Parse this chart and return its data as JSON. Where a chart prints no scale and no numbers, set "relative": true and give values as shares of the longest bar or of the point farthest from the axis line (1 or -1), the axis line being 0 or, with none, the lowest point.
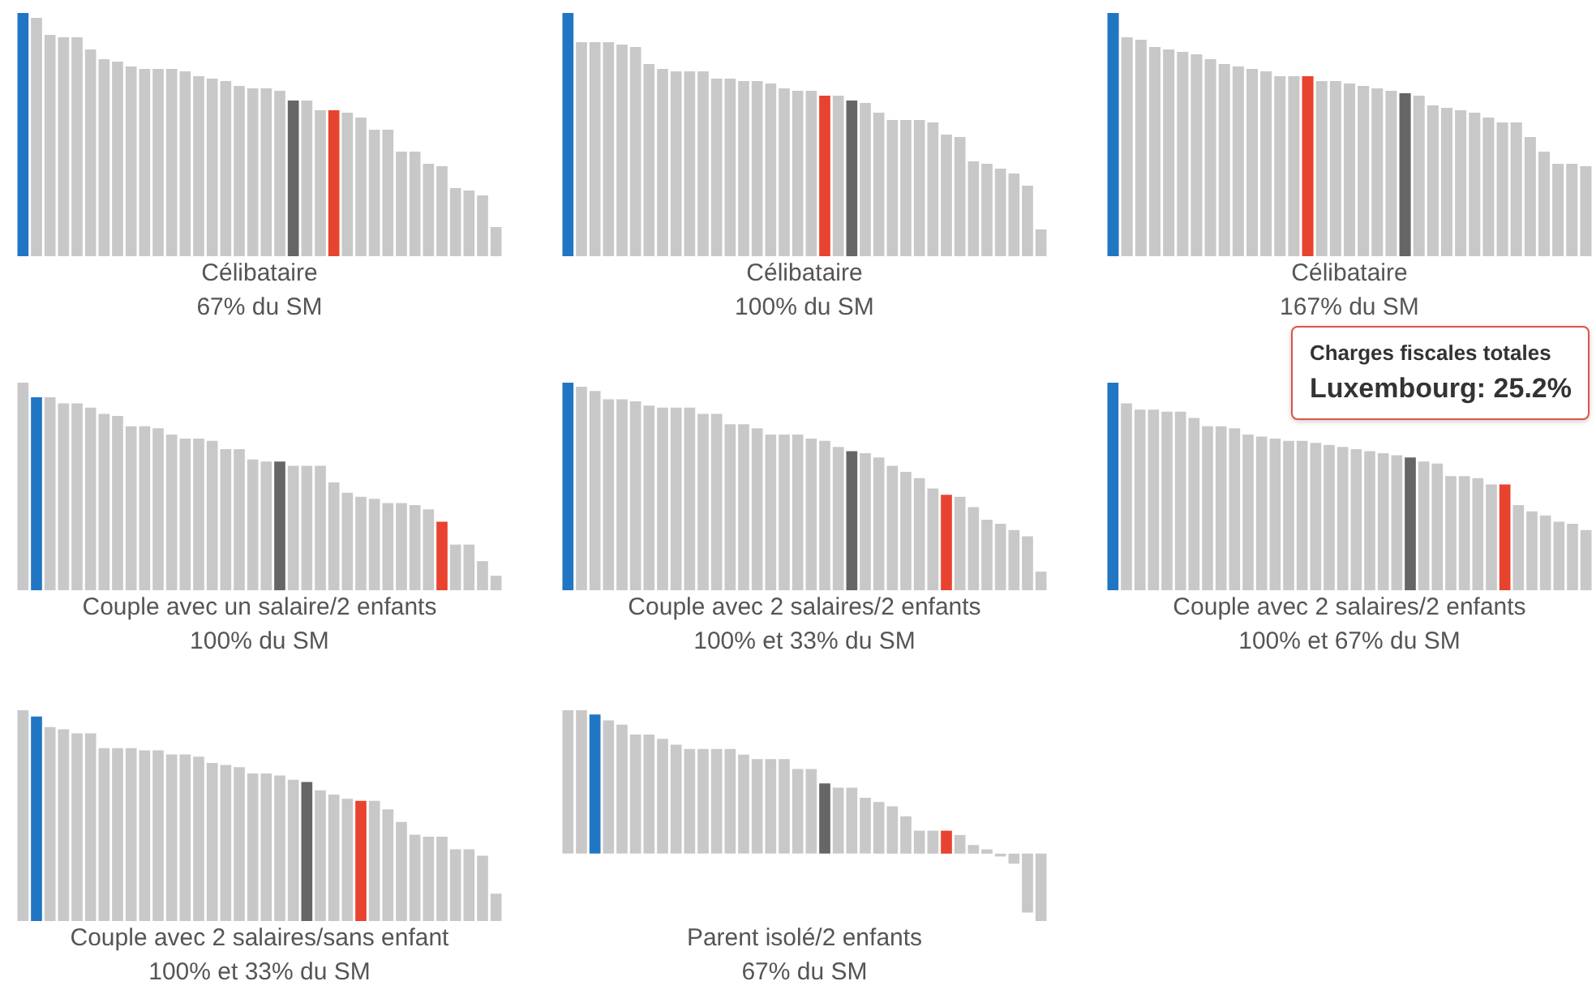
{
  "chart_data": [
    {
      "type": "bar",
      "relative": true,
      "title": "Célibataire",
      "subtitle": "67% du SM",
      "categories": [
        null,
        null,
        null,
        null,
        null,
        null,
        null,
        null,
        null,
        null,
        null,
        null,
        null,
        null,
        null,
        null,
        null,
        null,
        null,
        null,
        null,
        null,
        null,
        null,
        null,
        null,
        null,
        null,
        null,
        null,
        null,
        null,
        null,
        null,
        null,
        null
      ],
      "values": [
        1,
        0.98,
        0.91,
        0.9,
        0.9,
        0.85,
        0.81,
        0.8,
        0.78,
        0.77,
        0.77,
        0.77,
        0.76,
        0.74,
        0.73,
        0.72,
        0.7,
        0.69,
        0.69,
        0.68,
        0.64,
        0.64,
        0.6,
        0.6,
        0.59,
        0.57,
        0.52,
        0.52,
        0.43,
        0.43,
        0.38,
        0.37,
        0.28,
        0.27,
        0.25,
        0.12
      ],
      "colors": [
        "#2176c4",
        "#c8c8c8",
        "#c8c8c8",
        "#c8c8c8",
        "#c8c8c8",
        "#c8c8c8",
        "#c8c8c8",
        "#c8c8c8",
        "#c8c8c8",
        "#c8c8c8",
        "#c8c8c8",
        "#c8c8c8",
        "#c8c8c8",
        "#c8c8c8",
        "#c8c8c8",
        "#c8c8c8",
        "#c8c8c8",
        "#c8c8c8",
        "#c8c8c8",
        "#c8c8c8",
        "#666666",
        "#c8c8c8",
        "#c8c8c8",
        "#e8432e",
        "#c8c8c8",
        "#c8c8c8",
        "#c8c8c8",
        "#c8c8c8",
        "#c8c8c8",
        "#c8c8c8",
        "#c8c8c8",
        "#c8c8c8",
        "#c8c8c8",
        "#c8c8c8",
        "#c8c8c8",
        "#c8c8c8"
      ]
    },
    {
      "type": "bar",
      "relative": true,
      "title": "Célibataire",
      "subtitle": "100% du SM",
      "categories": [
        null,
        null,
        null,
        null,
        null,
        null,
        null,
        null,
        null,
        null,
        null,
        null,
        null,
        null,
        null,
        null,
        null,
        null,
        null,
        null,
        null,
        null,
        null,
        null,
        null,
        null,
        null,
        null,
        null,
        null,
        null,
        null,
        null,
        null,
        null,
        null
      ],
      "values": [
        1,
        0.88,
        0.88,
        0.88,
        0.87,
        0.86,
        0.79,
        0.77,
        0.76,
        0.76,
        0.76,
        0.73,
        0.73,
        0.72,
        0.72,
        0.71,
        0.69,
        0.68,
        0.68,
        0.66,
        0.66,
        0.64,
        0.63,
        0.59,
        0.56,
        0.56,
        0.56,
        0.55,
        0.5,
        0.49,
        0.39,
        0.38,
        0.36,
        0.34,
        0.29,
        0.11
      ],
      "colors": [
        "#2176c4",
        "#c8c8c8",
        "#c8c8c8",
        "#c8c8c8",
        "#c8c8c8",
        "#c8c8c8",
        "#c8c8c8",
        "#c8c8c8",
        "#c8c8c8",
        "#c8c8c8",
        "#c8c8c8",
        "#c8c8c8",
        "#c8c8c8",
        "#c8c8c8",
        "#c8c8c8",
        "#c8c8c8",
        "#c8c8c8",
        "#c8c8c8",
        "#c8c8c8",
        "#e8432e",
        "#c8c8c8",
        "#666666",
        "#c8c8c8",
        "#c8c8c8",
        "#c8c8c8",
        "#c8c8c8",
        "#c8c8c8",
        "#c8c8c8",
        "#c8c8c8",
        "#c8c8c8",
        "#c8c8c8",
        "#c8c8c8",
        "#c8c8c8",
        "#c8c8c8",
        "#c8c8c8",
        "#c8c8c8"
      ]
    },
    {
      "type": "bar",
      "relative": true,
      "title": "Célibataire",
      "subtitle": "167% du SM",
      "categories": [
        null,
        null,
        null,
        null,
        null,
        null,
        null,
        null,
        null,
        null,
        null,
        null,
        null,
        null,
        null,
        null,
        null,
        null,
        null,
        null,
        null,
        null,
        null,
        null,
        null,
        null,
        null,
        null,
        null,
        null,
        null,
        null,
        null,
        null,
        null
      ],
      "values": [
        1,
        0.9,
        0.89,
        0.86,
        0.85,
        0.84,
        0.83,
        0.81,
        0.79,
        0.78,
        0.77,
        0.76,
        0.74,
        0.74,
        0.74,
        0.72,
        0.72,
        0.71,
        0.7,
        0.69,
        0.68,
        0.67,
        0.66,
        0.62,
        0.61,
        0.6,
        0.59,
        0.57,
        0.55,
        0.55,
        0.49,
        0.43,
        0.38,
        0.38,
        0.37
      ],
      "colors": [
        "#2176c4",
        "#c8c8c8",
        "#c8c8c8",
        "#c8c8c8",
        "#c8c8c8",
        "#c8c8c8",
        "#c8c8c8",
        "#c8c8c8",
        "#c8c8c8",
        "#c8c8c8",
        "#c8c8c8",
        "#c8c8c8",
        "#c8c8c8",
        "#c8c8c8",
        "#e8432e",
        "#c8c8c8",
        "#c8c8c8",
        "#c8c8c8",
        "#c8c8c8",
        "#c8c8c8",
        "#c8c8c8",
        "#666666",
        "#c8c8c8",
        "#c8c8c8",
        "#c8c8c8",
        "#c8c8c8",
        "#c8c8c8",
        "#c8c8c8",
        "#c8c8c8",
        "#c8c8c8",
        "#c8c8c8",
        "#c8c8c8",
        "#c8c8c8",
        "#c8c8c8",
        "#c8c8c8"
      ]
    },
    {
      "type": "bar",
      "relative": true,
      "title": "Couple avec un salaire/2 enfants",
      "subtitle": "100% du SM",
      "categories": [
        null,
        null,
        null,
        null,
        null,
        null,
        null,
        null,
        null,
        null,
        null,
        null,
        null,
        null,
        null,
        null,
        null,
        null,
        null,
        null,
        null,
        null,
        null,
        null,
        null,
        null,
        null,
        null,
        null,
        null,
        null,
        null,
        null,
        null,
        null,
        null
      ],
      "values": [
        1,
        0.93,
        0.93,
        0.9,
        0.9,
        0.88,
        0.85,
        0.84,
        0.79,
        0.79,
        0.78,
        0.75,
        0.73,
        0.73,
        0.72,
        0.68,
        0.68,
        0.63,
        0.62,
        0.62,
        0.6,
        0.6,
        0.6,
        0.52,
        0.47,
        0.45,
        0.44,
        0.42,
        0.42,
        0.41,
        0.39,
        0.33,
        0.22,
        0.22,
        0.14,
        0.07
      ],
      "colors": [
        "#c8c8c8",
        "#2176c4",
        "#c8c8c8",
        "#c8c8c8",
        "#c8c8c8",
        "#c8c8c8",
        "#c8c8c8",
        "#c8c8c8",
        "#c8c8c8",
        "#c8c8c8",
        "#c8c8c8",
        "#c8c8c8",
        "#c8c8c8",
        "#c8c8c8",
        "#c8c8c8",
        "#c8c8c8",
        "#c8c8c8",
        "#c8c8c8",
        "#c8c8c8",
        "#666666",
        "#c8c8c8",
        "#c8c8c8",
        "#c8c8c8",
        "#c8c8c8",
        "#c8c8c8",
        "#c8c8c8",
        "#c8c8c8",
        "#c8c8c8",
        "#c8c8c8",
        "#c8c8c8",
        "#c8c8c8",
        "#e8432e",
        "#c8c8c8",
        "#c8c8c8",
        "#c8c8c8",
        "#c8c8c8"
      ]
    },
    {
      "type": "bar",
      "relative": true,
      "title": "Couple avec 2 salaires/2 enfants",
      "subtitle": "100% et 33% du SM",
      "categories": [
        null,
        null,
        null,
        null,
        null,
        null,
        null,
        null,
        null,
        null,
        null,
        null,
        null,
        null,
        null,
        null,
        null,
        null,
        null,
        null,
        null,
        null,
        null,
        null,
        null,
        null,
        null,
        null,
        null,
        null,
        null,
        null,
        null,
        null,
        null,
        null
      ],
      "values": [
        1,
        0.98,
        0.96,
        0.92,
        0.92,
        0.91,
        0.89,
        0.88,
        0.88,
        0.88,
        0.85,
        0.85,
        0.8,
        0.8,
        0.78,
        0.75,
        0.75,
        0.75,
        0.73,
        0.72,
        0.69,
        0.67,
        0.66,
        0.64,
        0.6,
        0.57,
        0.54,
        0.49,
        0.46,
        0.45,
        0.4,
        0.34,
        0.32,
        0.29,
        0.26,
        0.09
      ],
      "colors": [
        "#2176c4",
        "#c8c8c8",
        "#c8c8c8",
        "#c8c8c8",
        "#c8c8c8",
        "#c8c8c8",
        "#c8c8c8",
        "#c8c8c8",
        "#c8c8c8",
        "#c8c8c8",
        "#c8c8c8",
        "#c8c8c8",
        "#c8c8c8",
        "#c8c8c8",
        "#c8c8c8",
        "#c8c8c8",
        "#c8c8c8",
        "#c8c8c8",
        "#c8c8c8",
        "#c8c8c8",
        "#c8c8c8",
        "#666666",
        "#c8c8c8",
        "#c8c8c8",
        "#c8c8c8",
        "#c8c8c8",
        "#c8c8c8",
        "#c8c8c8",
        "#e8432e",
        "#c8c8c8",
        "#c8c8c8",
        "#c8c8c8",
        "#c8c8c8",
        "#c8c8c8",
        "#c8c8c8",
        "#c8c8c8"
      ]
    },
    {
      "type": "bar",
      "relative": true,
      "title": "Couple avec 2 salaires/2 enfants",
      "subtitle": "100% et 67% du SM",
      "annotations": [
        "Charges fiscales totales",
        "Luxembourg: 25.2%"
      ],
      "categories": [
        null,
        null,
        null,
        null,
        null,
        null,
        null,
        null,
        null,
        null,
        null,
        null,
        null,
        null,
        null,
        null,
        null,
        null,
        null,
        null,
        null,
        null,
        null,
        null,
        null,
        null,
        null,
        null,
        null,
        null,
        null,
        null,
        null,
        null,
        null,
        null
      ],
      "values": [
        1,
        0.9,
        0.87,
        0.87,
        0.86,
        0.86,
        0.83,
        0.79,
        0.79,
        0.78,
        0.75,
        0.74,
        0.73,
        0.72,
        0.72,
        0.71,
        0.7,
        0.69,
        0.68,
        0.67,
        0.66,
        0.65,
        0.64,
        0.62,
        0.61,
        0.55,
        0.55,
        0.54,
        0.51,
        0.51,
        0.41,
        0.38,
        0.36,
        0.33,
        0.32,
        0.29
      ],
      "colors": [
        "#2176c4",
        "#c8c8c8",
        "#c8c8c8",
        "#c8c8c8",
        "#c8c8c8",
        "#c8c8c8",
        "#c8c8c8",
        "#c8c8c8",
        "#c8c8c8",
        "#c8c8c8",
        "#c8c8c8",
        "#c8c8c8",
        "#c8c8c8",
        "#c8c8c8",
        "#c8c8c8",
        "#c8c8c8",
        "#c8c8c8",
        "#c8c8c8",
        "#c8c8c8",
        "#c8c8c8",
        "#c8c8c8",
        "#c8c8c8",
        "#666666",
        "#c8c8c8",
        "#c8c8c8",
        "#c8c8c8",
        "#c8c8c8",
        "#c8c8c8",
        "#c8c8c8",
        "#e8432e",
        "#c8c8c8",
        "#c8c8c8",
        "#c8c8c8",
        "#c8c8c8",
        "#c8c8c8",
        "#c8c8c8"
      ]
    },
    {
      "type": "bar",
      "relative": true,
      "title": "Couple avec 2 salaires/sans enfant",
      "subtitle": "100% et 33% du SM",
      "categories": [
        null,
        null,
        null,
        null,
        null,
        null,
        null,
        null,
        null,
        null,
        null,
        null,
        null,
        null,
        null,
        null,
        null,
        null,
        null,
        null,
        null,
        null,
        null,
        null,
        null,
        null,
        null,
        null,
        null,
        null,
        null,
        null,
        null,
        null,
        null,
        null
      ],
      "values": [
        1,
        0.97,
        0.92,
        0.91,
        0.89,
        0.89,
        0.82,
        0.82,
        0.82,
        0.81,
        0.81,
        0.79,
        0.79,
        0.78,
        0.75,
        0.74,
        0.73,
        0.7,
        0.7,
        0.69,
        0.67,
        0.66,
        0.62,
        0.6,
        0.58,
        0.57,
        0.57,
        0.53,
        0.47,
        0.41,
        0.4,
        0.4,
        0.34,
        0.34,
        0.31,
        0.13
      ],
      "colors": [
        "#c8c8c8",
        "#2176c4",
        "#c8c8c8",
        "#c8c8c8",
        "#c8c8c8",
        "#c8c8c8",
        "#c8c8c8",
        "#c8c8c8",
        "#c8c8c8",
        "#c8c8c8",
        "#c8c8c8",
        "#c8c8c8",
        "#c8c8c8",
        "#c8c8c8",
        "#c8c8c8",
        "#c8c8c8",
        "#c8c8c8",
        "#c8c8c8",
        "#c8c8c8",
        "#c8c8c8",
        "#c8c8c8",
        "#666666",
        "#c8c8c8",
        "#c8c8c8",
        "#c8c8c8",
        "#e8432e",
        "#c8c8c8",
        "#c8c8c8",
        "#c8c8c8",
        "#c8c8c8",
        "#c8c8c8",
        "#c8c8c8",
        "#c8c8c8",
        "#c8c8c8",
        "#c8c8c8",
        "#c8c8c8"
      ]
    },
    {
      "type": "bar",
      "relative": true,
      "title": "Parent isolé/2 enfants",
      "subtitle": "67% du SM",
      "categories": [
        null,
        null,
        null,
        null,
        null,
        null,
        null,
        null,
        null,
        null,
        null,
        null,
        null,
        null,
        null,
        null,
        null,
        null,
        null,
        null,
        null,
        null,
        null,
        null,
        null,
        null,
        null,
        null,
        null,
        null,
        null,
        null,
        null,
        null,
        null,
        null
      ],
      "values": [
        1,
        1,
        0.97,
        0.93,
        0.9,
        0.83,
        0.83,
        0.8,
        0.76,
        0.73,
        0.73,
        0.73,
        0.73,
        0.69,
        0.66,
        0.66,
        0.66,
        0.59,
        0.59,
        0.49,
        0.46,
        0.46,
        0.39,
        0.36,
        0.33,
        0.26,
        0.16,
        0.16,
        0.16,
        0.13,
        0.06,
        0.03,
        -0.02,
        -0.07,
        -0.41,
        -0.47
      ],
      "colors": [
        "#c8c8c8",
        "#c8c8c8",
        "#2176c4",
        "#c8c8c8",
        "#c8c8c8",
        "#c8c8c8",
        "#c8c8c8",
        "#c8c8c8",
        "#c8c8c8",
        "#c8c8c8",
        "#c8c8c8",
        "#c8c8c8",
        "#c8c8c8",
        "#c8c8c8",
        "#c8c8c8",
        "#c8c8c8",
        "#c8c8c8",
        "#c8c8c8",
        "#c8c8c8",
        "#666666",
        "#c8c8c8",
        "#c8c8c8",
        "#c8c8c8",
        "#c8c8c8",
        "#c8c8c8",
        "#c8c8c8",
        "#c8c8c8",
        "#c8c8c8",
        "#e8432e",
        "#c8c8c8",
        "#c8c8c8",
        "#c8c8c8",
        "#c8c8c8",
        "#c8c8c8",
        "#c8c8c8",
        "#c8c8c8"
      ]
    }
  ]
}
